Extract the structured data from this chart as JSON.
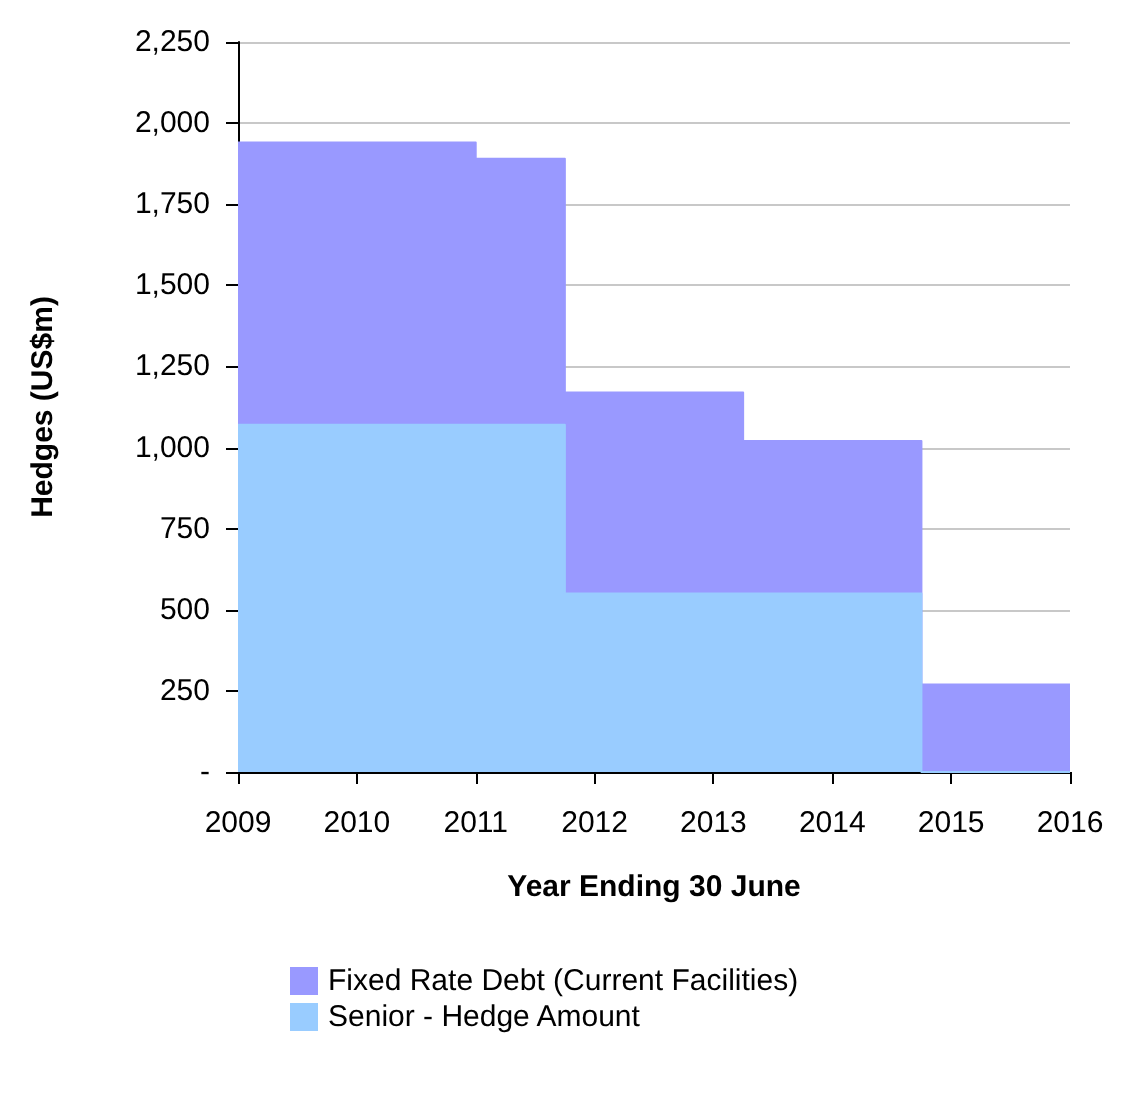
{
  "chart_data": {
    "type": "area",
    "stacked": true,
    "xlabel": "Year Ending 30 June",
    "ylabel": "Hedges (US$m)",
    "x": [
      2009,
      2011,
      2011,
      2011.75,
      2011.75,
      2013.25,
      2013.25,
      2014.75,
      2014.75,
      2016
    ],
    "series": [
      {
        "name": "Senior - Hedge Amount",
        "color": "#99ccff",
        "values": [
          1070,
          1070,
          1070,
          1070,
          550,
          550,
          550,
          550,
          0,
          0
        ]
      },
      {
        "name": "Fixed Rate Debt (Current Facilities)",
        "color": "#9999ff",
        "values": [
          870,
          870,
          820,
          820,
          620,
          620,
          470,
          470,
          270,
          270
        ]
      }
    ],
    "xlim": [
      2009,
      2016
    ],
    "xticks": [
      2009,
      2010,
      2011,
      2012,
      2013,
      2014,
      2015,
      2016
    ],
    "ylim": [
      0,
      2250
    ],
    "yticks": [
      {
        "value": 0,
        "label": "-"
      },
      {
        "value": 250,
        "label": "250"
      },
      {
        "value": 500,
        "label": "500"
      },
      {
        "value": 750,
        "label": "750"
      },
      {
        "value": 1000,
        "label": "1,000"
      },
      {
        "value": 1250,
        "label": "1,250"
      },
      {
        "value": 1500,
        "label": "1,500"
      },
      {
        "value": 1750,
        "label": "1,750"
      },
      {
        "value": 2000,
        "label": "2,000"
      },
      {
        "value": 2250,
        "label": "2,250"
      }
    ],
    "grid": "y",
    "legend": "bottom"
  }
}
